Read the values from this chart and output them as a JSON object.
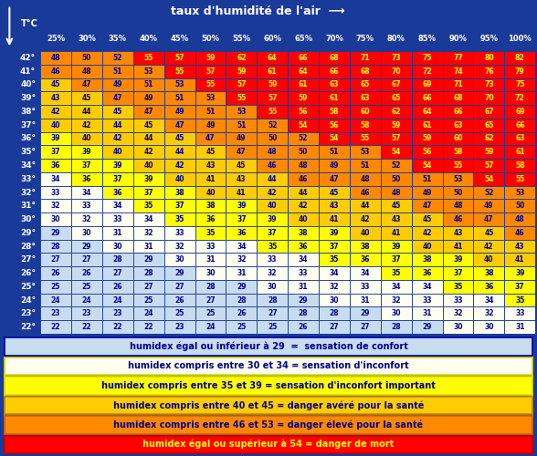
{
  "title_humidity": "taux d'humidité de l'air",
  "humidity_cols": [
    "25%",
    "30%",
    "35%",
    "40%",
    "45%",
    "50%",
    "55%",
    "60%",
    "65%",
    "70%",
    "75%",
    "80%",
    "85%",
    "90%",
    "95%",
    "100%"
  ],
  "temp_rows": [
    42,
    41,
    40,
    39,
    38,
    37,
    36,
    35,
    34,
    33,
    32,
    31,
    30,
    29,
    28,
    27,
    26,
    25,
    24,
    23,
    22
  ],
  "table_data": [
    [
      48,
      50,
      52,
      55,
      57,
      59,
      62,
      64,
      66,
      68,
      71,
      73,
      75,
      77,
      80,
      82
    ],
    [
      46,
      48,
      51,
      53,
      55,
      57,
      59,
      61,
      64,
      66,
      68,
      70,
      72,
      74,
      76,
      79
    ],
    [
      45,
      47,
      49,
      51,
      53,
      55,
      57,
      59,
      61,
      63,
      65,
      67,
      69,
      71,
      73,
      75
    ],
    [
      43,
      45,
      47,
      49,
      51,
      53,
      55,
      57,
      59,
      61,
      63,
      65,
      66,
      68,
      70,
      72
    ],
    [
      42,
      44,
      45,
      47,
      49,
      51,
      53,
      55,
      56,
      58,
      60,
      62,
      64,
      66,
      67,
      69
    ],
    [
      40,
      42,
      44,
      45,
      47,
      49,
      51,
      52,
      54,
      56,
      58,
      59,
      61,
      63,
      65,
      66
    ],
    [
      39,
      40,
      42,
      44,
      45,
      47,
      49,
      50,
      52,
      54,
      55,
      57,
      59,
      60,
      62,
      63
    ],
    [
      37,
      39,
      40,
      42,
      44,
      45,
      47,
      48,
      50,
      51,
      53,
      54,
      56,
      58,
      59,
      61
    ],
    [
      36,
      37,
      39,
      40,
      42,
      43,
      45,
      46,
      48,
      49,
      51,
      52,
      54,
      55,
      57,
      58
    ],
    [
      34,
      36,
      37,
      39,
      40,
      41,
      43,
      44,
      46,
      47,
      48,
      50,
      51,
      53,
      54,
      55
    ],
    [
      33,
      34,
      36,
      37,
      38,
      40,
      41,
      42,
      44,
      45,
      46,
      48,
      49,
      50,
      52,
      53
    ],
    [
      32,
      33,
      34,
      35,
      37,
      38,
      39,
      40,
      42,
      43,
      44,
      45,
      47,
      48,
      49,
      50
    ],
    [
      30,
      32,
      33,
      34,
      35,
      36,
      37,
      39,
      40,
      41,
      42,
      43,
      45,
      46,
      47,
      48
    ],
    [
      29,
      30,
      31,
      32,
      33,
      35,
      36,
      37,
      38,
      39,
      40,
      41,
      42,
      43,
      45,
      46
    ],
    [
      28,
      29,
      30,
      31,
      32,
      33,
      34,
      35,
      36,
      37,
      38,
      39,
      40,
      41,
      42,
      43
    ],
    [
      27,
      27,
      28,
      29,
      30,
      31,
      32,
      33,
      34,
      35,
      36,
      37,
      38,
      39,
      40,
      41
    ],
    [
      26,
      26,
      27,
      28,
      29,
      30,
      31,
      32,
      33,
      34,
      34,
      35,
      36,
      37,
      38,
      39
    ],
    [
      25,
      25,
      26,
      27,
      27,
      28,
      29,
      30,
      31,
      32,
      33,
      34,
      34,
      35,
      36,
      37
    ],
    [
      24,
      24,
      24,
      25,
      26,
      27,
      28,
      28,
      29,
      30,
      31,
      32,
      33,
      33,
      34,
      35
    ],
    [
      23,
      23,
      23,
      24,
      25,
      25,
      26,
      27,
      28,
      28,
      29,
      30,
      31,
      32,
      32,
      33
    ],
    [
      22,
      22,
      22,
      22,
      23,
      24,
      25,
      25,
      26,
      27,
      27,
      28,
      29,
      30,
      30,
      31
    ]
  ],
  "legend_entries": [
    {
      "label": "humidex égal ou inférieur à 29  =  sensation de confort",
      "bg": "#c8dcf0",
      "fg": "#00008B",
      "border": "#0000aa"
    },
    {
      "label": "humidex compris entre 30 et 34 = sensation d'inconfort",
      "bg": "#fffff0",
      "fg": "#00008B",
      "border": "#dddd00"
    },
    {
      "label": "humidex compris entre 35 et 39 = sensation d'inconfort important",
      "bg": "#ffff00",
      "fg": "#00008B",
      "border": "#dddd00"
    },
    {
      "label": "humidex compris entre 40 et 45 = danger avéré pour la santé",
      "bg": "#ffcc00",
      "fg": "#00008B",
      "border": "#cc8800"
    },
    {
      "label": "humidex compris entre 46 et 53 = danger élevé pour la santé",
      "bg": "#ff8800",
      "fg": "#00008B",
      "border": "#cc6600"
    },
    {
      "label": "humidex égal ou supérieur à 54 = danger de mort",
      "bg": "#ff0000",
      "fg": "#ffff00",
      "border": "#cc0000"
    }
  ],
  "bg_color": "#1a3a9a",
  "title_fontsize": 9,
  "col_fontsize": 6,
  "cell_fontsize": 5.5,
  "temp_fontsize": 6.5,
  "legend_fontsize": 7
}
